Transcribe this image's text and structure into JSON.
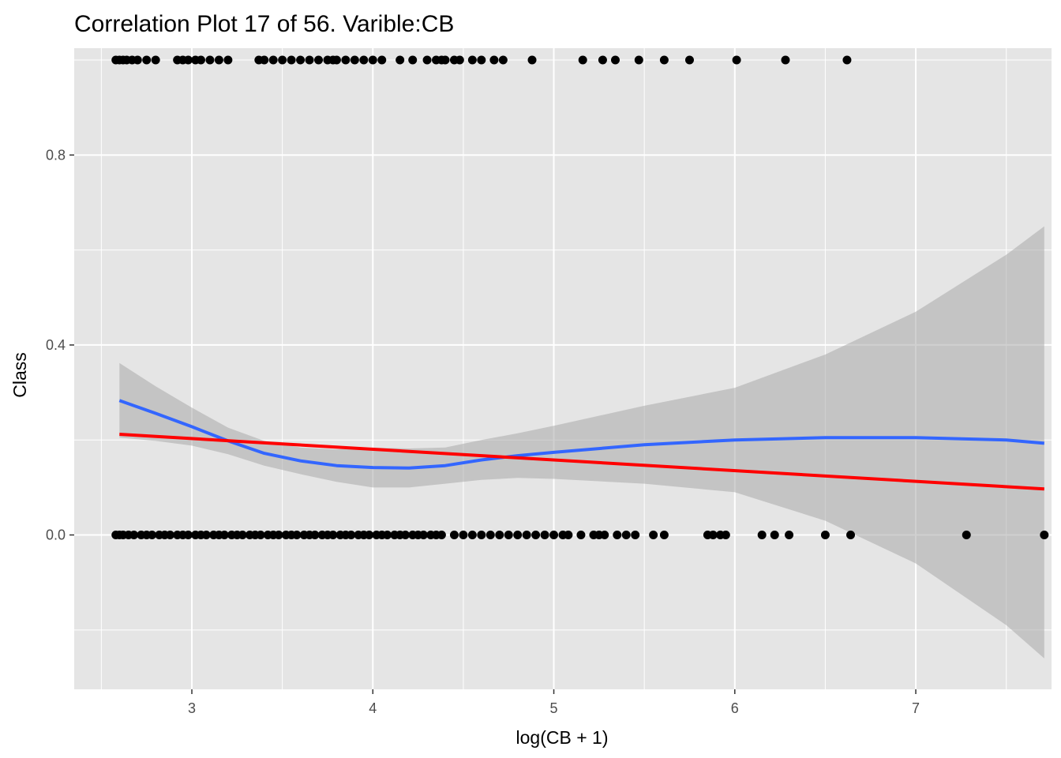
{
  "chart_data": {
    "type": "scatter",
    "title": "Correlation Plot 17 of 56. Varible:CB",
    "xlabel": "log(CB + 1)",
    "ylabel": "Class",
    "xlim": [
      2.35,
      7.75
    ],
    "ylim": [
      -0.325,
      1.025
    ],
    "x_ticks": [
      3,
      4,
      5,
      6,
      7
    ],
    "x_tick_labels": [
      "3",
      "4",
      "5",
      "6",
      "7"
    ],
    "y_ticks": [
      0.0,
      0.4,
      0.8
    ],
    "y_tick_labels": [
      "0.0",
      "0.4",
      "0.8"
    ],
    "grid": true,
    "legend": "none",
    "colors": {
      "panel": "#e5e5e5",
      "grid": "#ffffff",
      "points": "#000000",
      "loess": "#3366ff",
      "linear": "#ff0000",
      "ribbon": "#a9a9a9"
    },
    "points_class_1": [
      2.58,
      2.6,
      2.62,
      2.64,
      2.67,
      2.7,
      2.75,
      2.8,
      2.92,
      2.95,
      2.98,
      3.02,
      3.05,
      3.1,
      3.15,
      3.2,
      3.37,
      3.4,
      3.45,
      3.5,
      3.55,
      3.6,
      3.65,
      3.7,
      3.75,
      3.78,
      3.8,
      3.85,
      3.9,
      3.95,
      4.0,
      4.05,
      4.15,
      4.22,
      4.3,
      4.35,
      4.38,
      4.4,
      4.45,
      4.48,
      4.55,
      4.6,
      4.67,
      4.72,
      4.88,
      5.16,
      5.27,
      5.34,
      5.47,
      5.61,
      5.75,
      6.01,
      6.28,
      6.62
    ],
    "points_class_0": [
      2.58,
      2.6,
      2.62,
      2.65,
      2.68,
      2.72,
      2.75,
      2.78,
      2.82,
      2.85,
      2.88,
      2.92,
      2.95,
      2.98,
      3.02,
      3.05,
      3.08,
      3.12,
      3.15,
      3.18,
      3.22,
      3.25,
      3.28,
      3.32,
      3.35,
      3.38,
      3.42,
      3.45,
      3.48,
      3.52,
      3.55,
      3.58,
      3.62,
      3.65,
      3.68,
      3.72,
      3.75,
      3.78,
      3.82,
      3.85,
      3.88,
      3.92,
      3.95,
      3.98,
      4.02,
      4.05,
      4.08,
      4.12,
      4.15,
      4.18,
      4.22,
      4.25,
      4.28,
      4.32,
      4.35,
      4.38,
      4.45,
      4.5,
      4.55,
      4.6,
      4.65,
      4.7,
      4.75,
      4.8,
      4.85,
      4.9,
      4.95,
      5.0,
      5.05,
      5.08,
      5.15,
      5.22,
      5.25,
      5.28,
      5.35,
      5.4,
      5.45,
      5.55,
      5.61,
      5.85,
      5.88,
      5.92,
      5.95,
      6.15,
      6.22,
      6.3,
      6.5,
      6.64,
      7.28,
      7.71
    ],
    "series": [
      {
        "type": "line",
        "color": "#3366ff",
        "x": [
          2.6,
          2.8,
          3.0,
          3.2,
          3.4,
          3.6,
          3.8,
          4.0,
          4.2,
          4.4,
          4.6,
          4.8,
          5.0,
          5.5,
          6.0,
          6.5,
          7.0,
          7.5,
          7.71
        ],
        "y": [
          0.283,
          0.256,
          0.228,
          0.198,
          0.172,
          0.156,
          0.146,
          0.142,
          0.141,
          0.146,
          0.158,
          0.167,
          0.174,
          0.19,
          0.2,
          0.205,
          0.205,
          0.2,
          0.193
        ]
      },
      {
        "type": "line",
        "color": "#ff0000",
        "x": [
          2.6,
          7.71
        ],
        "y": [
          0.212,
          0.097
        ]
      },
      {
        "type": "area",
        "x": [
          2.6,
          2.8,
          3.0,
          3.2,
          3.4,
          3.6,
          3.8,
          4.0,
          4.2,
          4.4,
          4.6,
          4.8,
          5.0,
          5.5,
          6.0,
          6.5,
          7.0,
          7.5,
          7.71
        ],
        "ymin": [
          0.205,
          0.198,
          0.188,
          0.17,
          0.146,
          0.128,
          0.112,
          0.1,
          0.1,
          0.108,
          0.116,
          0.12,
          0.118,
          0.108,
          0.09,
          0.03,
          -0.06,
          -0.19,
          -0.26
        ],
        "ymax": [
          0.362,
          0.313,
          0.268,
          0.226,
          0.198,
          0.184,
          0.18,
          0.184,
          0.182,
          0.184,
          0.2,
          0.214,
          0.23,
          0.272,
          0.31,
          0.38,
          0.47,
          0.59,
          0.65
        ]
      }
    ]
  }
}
